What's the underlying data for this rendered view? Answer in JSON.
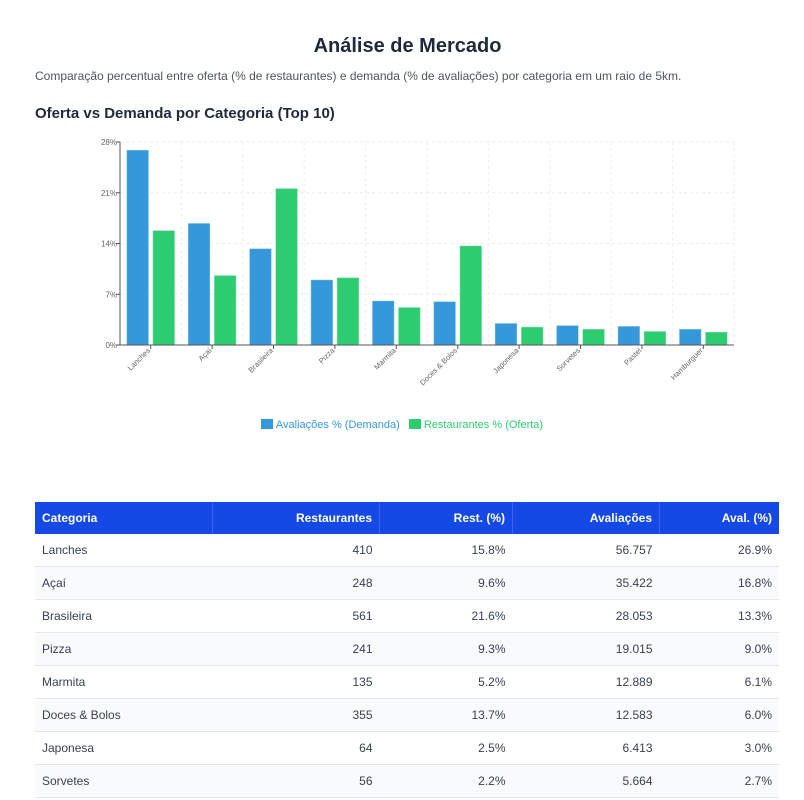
{
  "page": {
    "title": "Análise de Mercado",
    "subtitle": "Comparação percentual entre oferta (% de restaurantes) e demanda (% de avaliações) por categoria em um raio de 5km.",
    "chart_title": "Oferta vs Demanda por Categoria (Top 10)"
  },
  "chart_data": {
    "type": "bar",
    "title": "Oferta vs Demanda por Categoria (Top 10)",
    "categories": [
      "Lanches",
      "Açaí",
      "Brasileira",
      "Pizza",
      "Marmita",
      "Doces & Bolos",
      "Japonesa",
      "Sorvetes",
      "Pastel",
      "Hamburguer"
    ],
    "series": [
      {
        "name": "Avaliações % (Demanda)",
        "color": "#3498db",
        "values": [
          26.9,
          16.8,
          13.3,
          9.0,
          6.1,
          6.0,
          3.0,
          2.7,
          2.6,
          2.2
        ]
      },
      {
        "name": "Restaurantes % (Oferta)",
        "color": "#2ecc71",
        "values": [
          15.8,
          9.6,
          21.6,
          9.3,
          5.2,
          13.7,
          2.5,
          2.2,
          1.9,
          1.8
        ]
      }
    ],
    "yticks": [
      "0%",
      "7%",
      "14%",
      "21%",
      "28%"
    ],
    "ytick_values": [
      0,
      7,
      14,
      21,
      28
    ],
    "ylim": [
      0,
      28
    ],
    "grid": true,
    "legend": "bottom-center"
  },
  "table": {
    "headers": [
      "Categoria",
      "Restaurantes",
      "Rest. (%)",
      "Avaliações",
      "Aval. (%)"
    ],
    "rows": [
      [
        "Lanches",
        "410",
        "15.8%",
        "56.757",
        "26.9%"
      ],
      [
        "Açaí",
        "248",
        "9.6%",
        "35.422",
        "16.8%"
      ],
      [
        "Brasileira",
        "561",
        "21.6%",
        "28.053",
        "13.3%"
      ],
      [
        "Pizza",
        "241",
        "9.3%",
        "19.015",
        "9.0%"
      ],
      [
        "Marmita",
        "135",
        "5.2%",
        "12.889",
        "6.1%"
      ],
      [
        "Doces & Bolos",
        "355",
        "13.7%",
        "12.583",
        "6.0%"
      ],
      [
        "Japonesa",
        "64",
        "2.5%",
        "6.413",
        "3.0%"
      ],
      [
        "Sorvetes",
        "56",
        "2.2%",
        "5.664",
        "2.7%"
      ]
    ]
  }
}
